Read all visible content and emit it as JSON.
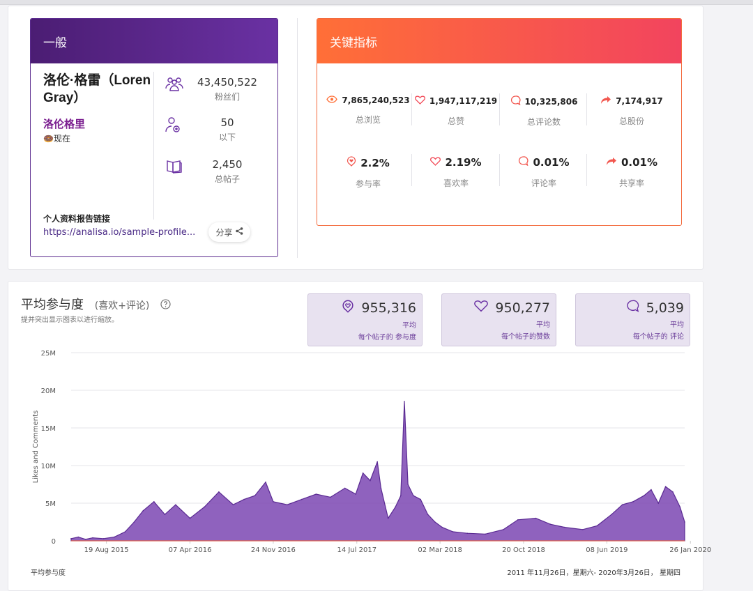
{
  "general": {
    "header": "一般",
    "name": "洛伦·格雷（Loren Gray）",
    "nickname": "洛伦格里",
    "status": "🍩现在",
    "followers": {
      "value": "43,450,522",
      "label": "粉丝们"
    },
    "following": {
      "value": "50",
      "label": "以下"
    },
    "posts": {
      "value": "2,450",
      "label": "总帖子"
    },
    "link_title": "个人资料报告链接",
    "link_url": "https://analisa.io/sample-profile...",
    "share_label": "分享"
  },
  "kpi": {
    "header": "关键指标",
    "views": {
      "value": "7,865,240,523",
      "label": "总浏览"
    },
    "likes": {
      "value": "1,947,117,219",
      "label": "总赞"
    },
    "comments": {
      "value": "10,325,806",
      "label": "总评论数"
    },
    "shares": {
      "value": "7,174,917",
      "label": "总股份"
    },
    "engagement_rate": {
      "value": "2.2%",
      "label": "参与率"
    },
    "like_rate": {
      "value": "2.19%",
      "label": "喜欢率"
    },
    "comment_rate": {
      "value": "0.01%",
      "label": "评论率"
    },
    "share_rate": {
      "value": "0.01%",
      "label": "共享率"
    }
  },
  "engagement": {
    "title": "平均参与度",
    "title_suffix": "(喜欢+评论)",
    "subtitle": "提并突出显示图表以进行缩放。",
    "avg_engagement": {
      "value": "955,316",
      "line1": "平均",
      "line2": "每个帖子的 参与度"
    },
    "avg_likes": {
      "value": "950,277",
      "line1": "平均",
      "line2": "每个帖子的赞数"
    },
    "avg_comments": {
      "value": "5,039",
      "line1": "平均",
      "line2": "每个帖子的 评论"
    },
    "footer_left": "平均参与度",
    "footer_right": "2011 年11月26日，星期六- 2020年3月26日， 星期四"
  },
  "colors": {
    "purple": "#6a31a3",
    "orange": "#ff6f37",
    "fill": "#7b47b3",
    "line": "#5a2a92"
  },
  "chart_data": {
    "type": "area",
    "title": "",
    "xlabel": "",
    "ylabel": "Likes and Comments",
    "ylim": [
      0,
      25000000
    ],
    "y_ticks": [
      "0",
      "5M",
      "10M",
      "15M",
      "20M",
      "25M"
    ],
    "x_ticks": [
      "19 Aug 2015",
      "07 Apr 2016",
      "24 Nov 2016",
      "14 Jul 2017",
      "02 Mar 2018",
      "20 Oct 2018",
      "08 Jun 2019",
      "26 Jan 2020"
    ],
    "x_range_days": [
      0,
      1703
    ],
    "tick_days": [
      98,
      330,
      561,
      793,
      1024,
      1256,
      1487,
      1719
    ],
    "series": [
      {
        "name": "Likes and Comments",
        "x": [
          0,
          20,
          40,
          60,
          90,
          120,
          150,
          175,
          200,
          230,
          260,
          290,
          330,
          370,
          410,
          450,
          480,
          510,
          540,
          561,
          600,
          640,
          680,
          720,
          760,
          790,
          810,
          830,
          850,
          860,
          880,
          900,
          915,
          925,
          935,
          950,
          970,
          990,
          1010,
          1030,
          1060,
          1100,
          1150,
          1200,
          1240,
          1290,
          1330,
          1370,
          1420,
          1460,
          1500,
          1530,
          1560,
          1590,
          1610,
          1630,
          1650,
          1670,
          1690,
          1703
        ],
        "y": [
          300000,
          500000,
          200000,
          400000,
          300000,
          500000,
          1200000,
          2500000,
          4000000,
          5200000,
          3500000,
          4800000,
          3000000,
          4500000,
          6500000,
          4800000,
          5500000,
          6000000,
          7800000,
          5200000,
          4800000,
          5500000,
          6200000,
          5800000,
          7000000,
          6200000,
          9000000,
          8000000,
          10500000,
          7000000,
          3000000,
          4500000,
          6000000,
          18500000,
          7500000,
          6000000,
          5500000,
          3500000,
          2500000,
          1800000,
          1200000,
          1000000,
          900000,
          1500000,
          2800000,
          3000000,
          2200000,
          1800000,
          1500000,
          2000000,
          3500000,
          4800000,
          5200000,
          6000000,
          6800000,
          5000000,
          7200000,
          6500000,
          4500000,
          2500000
        ]
      }
    ]
  }
}
